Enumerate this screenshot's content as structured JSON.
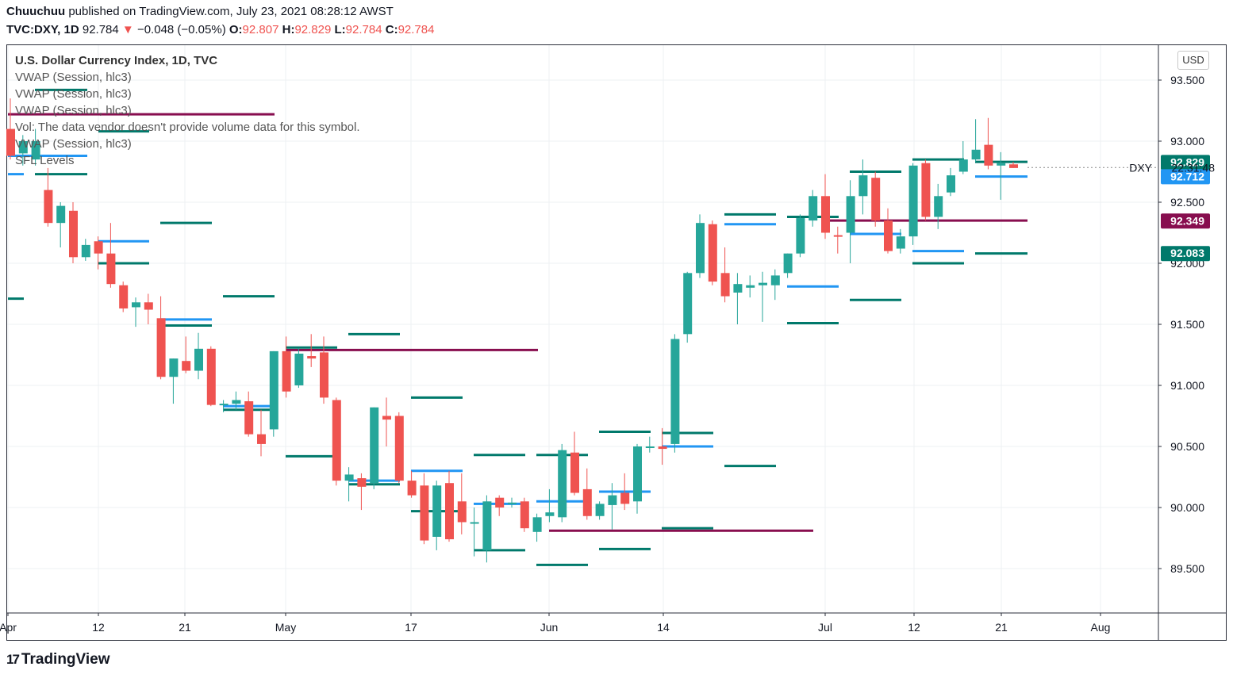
{
  "header": {
    "author": "Chuuchuu",
    "published": "published on TradingView.com, July 23, 2021 08:28:12 AWST",
    "symbol": "TVC:DXY, 1D",
    "last": "92.784",
    "change": "−0.048 (−0.05%)",
    "o_label": "O:",
    "o": "92.807",
    "h_label": "H:",
    "h": "92.829",
    "l_label": "L:",
    "l": "92.784",
    "c_label": "C:",
    "c": "92.784"
  },
  "legend": {
    "title": "U.S. Dollar Currency Index, 1D, TVC",
    "line1": "VWAP (Session, hlc3)",
    "line2": "VWAP (Session, hlc3)",
    "line3": "VWAP (Session, hlc3)",
    "vol": "Vol: The data vendor doesn't provide volume data for this symbol.",
    "line5": "VWAP (Session, hlc3)",
    "line6": "SFL Levels"
  },
  "currency_button": "USD",
  "symbol_tag": "DXY",
  "countdown": "22:31:48",
  "logo_text": "TradingView",
  "colors": {
    "up": "#26a69a",
    "down": "#ef5350",
    "vwap": "#2196f3",
    "sfl": "#00796b",
    "maroon": "#880e4f"
  },
  "chart_data": {
    "type": "candlestick",
    "ylim": [
      89.25,
      93.65
    ],
    "yticks": [
      "93.500",
      "93.000",
      "92.500",
      "92.000",
      "91.500",
      "91.000",
      "90.500",
      "90.000",
      "89.500"
    ],
    "xticks": [
      "Apr",
      "12",
      "21",
      "May",
      "17",
      "Jun",
      "14",
      "Jul",
      "12",
      "21",
      "Aug"
    ],
    "price_badges": [
      {
        "value": "92.829",
        "color": "#00796b"
      },
      {
        "value": "92.712",
        "color": "#2196f3"
      },
      {
        "value": "92.349",
        "color": "#880e4f"
      },
      {
        "value": "92.083",
        "color": "#00796b"
      }
    ],
    "candles": [
      {
        "o": 93.1,
        "h": 93.35,
        "l": 92.85,
        "c": 92.88
      },
      {
        "o": 92.9,
        "h": 93.05,
        "l": 92.8,
        "c": 93.0
      },
      {
        "o": 92.85,
        "h": 93.1,
        "l": 92.8,
        "c": 93.0
      },
      {
        "o": 92.6,
        "h": 92.78,
        "l": 92.3,
        "c": 92.33
      },
      {
        "o": 92.33,
        "h": 92.5,
        "l": 92.13,
        "c": 92.47
      },
      {
        "o": 92.43,
        "h": 92.5,
        "l": 92.0,
        "c": 92.05
      },
      {
        "o": 92.05,
        "h": 92.2,
        "l": 92.02,
        "c": 92.15
      },
      {
        "o": 92.18,
        "h": 92.22,
        "l": 91.95,
        "c": 92.08
      },
      {
        "o": 92.08,
        "h": 92.33,
        "l": 91.8,
        "c": 91.83
      },
      {
        "o": 91.82,
        "h": 91.85,
        "l": 91.6,
        "c": 91.63
      },
      {
        "o": 91.64,
        "h": 91.72,
        "l": 91.48,
        "c": 91.68
      },
      {
        "o": 91.68,
        "h": 91.75,
        "l": 91.5,
        "c": 91.62
      },
      {
        "o": 91.55,
        "h": 91.73,
        "l": 91.05,
        "c": 91.07
      },
      {
        "o": 91.07,
        "h": 91.22,
        "l": 90.85,
        "c": 91.22
      },
      {
        "o": 91.2,
        "h": 91.4,
        "l": 91.1,
        "c": 91.12
      },
      {
        "o": 91.12,
        "h": 91.43,
        "l": 91.05,
        "c": 91.3
      },
      {
        "o": 91.3,
        "h": 91.32,
        "l": 90.83,
        "c": 90.84
      },
      {
        "o": 90.84,
        "h": 90.88,
        "l": 90.78,
        "c": 90.85
      },
      {
        "o": 90.85,
        "h": 90.95,
        "l": 90.8,
        "c": 90.88
      },
      {
        "o": 90.87,
        "h": 90.95,
        "l": 90.58,
        "c": 90.6
      },
      {
        "o": 90.6,
        "h": 90.8,
        "l": 90.42,
        "c": 90.52
      },
      {
        "o": 90.64,
        "h": 91.28,
        "l": 90.58,
        "c": 91.28
      },
      {
        "o": 91.28,
        "h": 91.4,
        "l": 90.9,
        "c": 90.95
      },
      {
        "o": 91.0,
        "h": 91.3,
        "l": 90.98,
        "c": 91.26
      },
      {
        "o": 91.24,
        "h": 91.42,
        "l": 91.15,
        "c": 91.22
      },
      {
        "o": 91.27,
        "h": 91.4,
        "l": 90.85,
        "c": 90.9
      },
      {
        "o": 90.88,
        "h": 90.9,
        "l": 90.18,
        "c": 90.22
      },
      {
        "o": 90.22,
        "h": 90.33,
        "l": 90.05,
        "c": 90.27
      },
      {
        "o": 90.24,
        "h": 90.28,
        "l": 89.98,
        "c": 90.17
      },
      {
        "o": 90.2,
        "h": 90.82,
        "l": 90.15,
        "c": 90.82
      },
      {
        "o": 90.75,
        "h": 90.9,
        "l": 90.5,
        "c": 90.72
      },
      {
        "o": 90.75,
        "h": 90.78,
        "l": 90.2,
        "c": 90.22
      },
      {
        "o": 90.22,
        "h": 90.3,
        "l": 90.08,
        "c": 90.1
      },
      {
        "o": 90.18,
        "h": 90.28,
        "l": 89.7,
        "c": 89.73
      },
      {
        "o": 89.76,
        "h": 90.22,
        "l": 89.65,
        "c": 90.18
      },
      {
        "o": 90.2,
        "h": 90.3,
        "l": 89.72,
        "c": 89.74
      },
      {
        "o": 90.05,
        "h": 90.28,
        "l": 89.78,
        "c": 89.88
      },
      {
        "o": 89.88,
        "h": 90.0,
        "l": 89.6,
        "c": 89.88
      },
      {
        "o": 89.65,
        "h": 90.1,
        "l": 89.55,
        "c": 90.05
      },
      {
        "o": 90.08,
        "h": 90.1,
        "l": 89.93,
        "c": 90.0
      },
      {
        "o": 90.03,
        "h": 90.08,
        "l": 90.0,
        "c": 90.04
      },
      {
        "o": 90.05,
        "h": 90.08,
        "l": 89.8,
        "c": 89.83
      },
      {
        "o": 89.8,
        "h": 89.95,
        "l": 89.72,
        "c": 89.92
      },
      {
        "o": 89.93,
        "h": 90.15,
        "l": 89.88,
        "c": 89.96
      },
      {
        "o": 89.92,
        "h": 90.52,
        "l": 89.88,
        "c": 90.47
      },
      {
        "o": 90.45,
        "h": 90.62,
        "l": 90.1,
        "c": 90.12
      },
      {
        "o": 90.15,
        "h": 90.32,
        "l": 89.9,
        "c": 89.93
      },
      {
        "o": 89.93,
        "h": 90.05,
        "l": 89.9,
        "c": 90.03
      },
      {
        "o": 90.02,
        "h": 90.2,
        "l": 89.82,
        "c": 90.1
      },
      {
        "o": 90.12,
        "h": 90.28,
        "l": 89.98,
        "c": 90.03
      },
      {
        "o": 90.05,
        "h": 90.52,
        "l": 89.95,
        "c": 90.5
      },
      {
        "o": 90.5,
        "h": 90.58,
        "l": 90.45,
        "c": 90.5
      },
      {
        "o": 90.5,
        "h": 90.65,
        "l": 90.35,
        "c": 90.48
      },
      {
        "o": 90.52,
        "h": 91.42,
        "l": 90.45,
        "c": 91.38
      },
      {
        "o": 91.42,
        "h": 91.93,
        "l": 91.35,
        "c": 91.92
      },
      {
        "o": 91.92,
        "h": 92.4,
        "l": 91.88,
        "c": 92.33
      },
      {
        "o": 92.32,
        "h": 92.35,
        "l": 91.82,
        "c": 91.85
      },
      {
        "o": 91.92,
        "h": 92.13,
        "l": 91.68,
        "c": 91.73
      },
      {
        "o": 91.76,
        "h": 91.92,
        "l": 91.5,
        "c": 91.83
      },
      {
        "o": 91.8,
        "h": 91.9,
        "l": 91.72,
        "c": 91.82
      },
      {
        "o": 91.82,
        "h": 91.93,
        "l": 91.52,
        "c": 91.84
      },
      {
        "o": 91.82,
        "h": 91.95,
        "l": 91.7,
        "c": 91.9
      },
      {
        "o": 91.92,
        "h": 92.08,
        "l": 91.88,
        "c": 92.08
      },
      {
        "o": 92.08,
        "h": 92.4,
        "l": 92.05,
        "c": 92.37
      },
      {
        "o": 92.35,
        "h": 92.6,
        "l": 92.3,
        "c": 92.55
      },
      {
        "o": 92.55,
        "h": 92.73,
        "l": 92.2,
        "c": 92.25
      },
      {
        "o": 92.23,
        "h": 92.3,
        "l": 92.08,
        "c": 92.22
      },
      {
        "o": 92.25,
        "h": 92.68,
        "l": 92.0,
        "c": 92.55
      },
      {
        "o": 92.55,
        "h": 92.85,
        "l": 92.4,
        "c": 92.72
      },
      {
        "o": 92.7,
        "h": 92.75,
        "l": 92.3,
        "c": 92.35
      },
      {
        "o": 92.35,
        "h": 92.45,
        "l": 92.08,
        "c": 92.1
      },
      {
        "o": 92.12,
        "h": 92.28,
        "l": 92.08,
        "c": 92.22
      },
      {
        "o": 92.22,
        "h": 92.82,
        "l": 92.15,
        "c": 92.8
      },
      {
        "o": 92.82,
        "h": 92.85,
        "l": 92.35,
        "c": 92.38
      },
      {
        "o": 92.38,
        "h": 92.65,
        "l": 92.28,
        "c": 92.55
      },
      {
        "o": 92.58,
        "h": 92.78,
        "l": 92.55,
        "c": 92.72
      },
      {
        "o": 92.75,
        "h": 93.0,
        "l": 92.73,
        "c": 92.85
      },
      {
        "o": 92.85,
        "h": 93.18,
        "l": 92.83,
        "c": 92.93
      },
      {
        "o": 92.97,
        "h": 93.19,
        "l": 92.77,
        "c": 92.8
      },
      {
        "o": 92.8,
        "h": 92.91,
        "l": 92.52,
        "c": 92.82
      },
      {
        "o": 92.81,
        "h": 92.83,
        "l": 92.78,
        "c": 92.78
      }
    ],
    "levels": [
      {
        "price": 93.22,
        "x0": 10,
        "x1": 346,
        "color": "#880e4f"
      },
      {
        "price": 92.88,
        "x0": 10,
        "x1": 110,
        "color": "#2196f3"
      },
      {
        "price": 92.73,
        "x0": 10,
        "x1": 30,
        "color": "#2196f3"
      },
      {
        "price": 92.73,
        "x0": 44,
        "x1": 110,
        "color": "#00796b"
      },
      {
        "price": 93.42,
        "x0": 44,
        "x1": 110,
        "color": "#00796b"
      },
      {
        "price": 93.08,
        "x0": 124,
        "x1": 188,
        "color": "#00796b"
      },
      {
        "price": 91.71,
        "x0": 10,
        "x1": 30,
        "color": "#00796b"
      },
      {
        "price": 92.18,
        "x0": 124,
        "x1": 188,
        "color": "#2196f3"
      },
      {
        "price": 92.0,
        "x0": 124,
        "x1": 188,
        "color": "#00796b"
      },
      {
        "price": 92.33,
        "x0": 202,
        "x1": 267,
        "color": "#00796b"
      },
      {
        "price": 91.54,
        "x0": 202,
        "x1": 267,
        "color": "#2196f3"
      },
      {
        "price": 91.49,
        "x0": 202,
        "x1": 267,
        "color": "#00796b"
      },
      {
        "price": 91.73,
        "x0": 281,
        "x1": 346,
        "color": "#00796b"
      },
      {
        "price": 90.83,
        "x0": 281,
        "x1": 346,
        "color": "#2196f3"
      },
      {
        "price": 90.8,
        "x0": 281,
        "x1": 346,
        "color": "#00796b"
      },
      {
        "price": 91.29,
        "x0": 360,
        "x1": 678,
        "color": "#880e4f"
      },
      {
        "price": 91.31,
        "x0": 360,
        "x1": 425,
        "color": "#00796b"
      },
      {
        "price": 90.42,
        "x0": 360,
        "x1": 425,
        "color": "#00796b"
      },
      {
        "price": 91.42,
        "x0": 439,
        "x1": 504,
        "color": "#00796b"
      },
      {
        "price": 90.22,
        "x0": 439,
        "x1": 504,
        "color": "#2196f3"
      },
      {
        "price": 90.19,
        "x0": 439,
        "x1": 504,
        "color": "#00796b"
      },
      {
        "price": 90.9,
        "x0": 518,
        "x1": 583,
        "color": "#00796b"
      },
      {
        "price": 90.3,
        "x0": 518,
        "x1": 583,
        "color": "#2196f3"
      },
      {
        "price": 89.97,
        "x0": 518,
        "x1": 583,
        "color": "#00796b"
      },
      {
        "price": 90.43,
        "x0": 597,
        "x1": 662,
        "color": "#00796b"
      },
      {
        "price": 90.03,
        "x0": 597,
        "x1": 662,
        "color": "#2196f3"
      },
      {
        "price": 89.65,
        "x0": 597,
        "x1": 662,
        "color": "#00796b"
      },
      {
        "price": 90.43,
        "x0": 676,
        "x1": 741,
        "color": "#00796b"
      },
      {
        "price": 90.05,
        "x0": 676,
        "x1": 741,
        "color": "#2196f3"
      },
      {
        "price": 89.53,
        "x0": 676,
        "x1": 741,
        "color": "#00796b"
      },
      {
        "price": 89.81,
        "x0": 692,
        "x1": 1025,
        "color": "#880e4f"
      },
      {
        "price": 90.62,
        "x0": 755,
        "x1": 820,
        "color": "#00796b"
      },
      {
        "price": 90.13,
        "x0": 755,
        "x1": 820,
        "color": "#2196f3"
      },
      {
        "price": 89.66,
        "x0": 755,
        "x1": 820,
        "color": "#00796b"
      },
      {
        "price": 90.61,
        "x0": 834,
        "x1": 899,
        "color": "#00796b"
      },
      {
        "price": 90.5,
        "x0": 834,
        "x1": 899,
        "color": "#2196f3"
      },
      {
        "price": 89.83,
        "x0": 834,
        "x1": 899,
        "color": "#00796b"
      },
      {
        "price": 92.4,
        "x0": 913,
        "x1": 978,
        "color": "#00796b"
      },
      {
        "price": 92.32,
        "x0": 913,
        "x1": 978,
        "color": "#2196f3"
      },
      {
        "price": 90.34,
        "x0": 913,
        "x1": 978,
        "color": "#00796b"
      },
      {
        "price": 92.38,
        "x0": 992,
        "x1": 1057,
        "color": "#00796b"
      },
      {
        "price": 91.81,
        "x0": 992,
        "x1": 1057,
        "color": "#2196f3"
      },
      {
        "price": 91.51,
        "x0": 992,
        "x1": 1057,
        "color": "#00796b"
      },
      {
        "price": 92.75,
        "x0": 1071,
        "x1": 1136,
        "color": "#00796b"
      },
      {
        "price": 92.24,
        "x0": 1071,
        "x1": 1136,
        "color": "#2196f3"
      },
      {
        "price": 91.7,
        "x0": 1071,
        "x1": 1136,
        "color": "#00796b"
      },
      {
        "price": 92.35,
        "x0": 1040,
        "x1": 1295,
        "color": "#880e4f"
      },
      {
        "price": 92.85,
        "x0": 1150,
        "x1": 1215,
        "color": "#00796b"
      },
      {
        "price": 92.1,
        "x0": 1150,
        "x1": 1215,
        "color": "#2196f3"
      },
      {
        "price": 92.0,
        "x0": 1150,
        "x1": 1215,
        "color": "#00796b"
      },
      {
        "price": 92.83,
        "x0": 1229,
        "x1": 1295,
        "color": "#00796b"
      },
      {
        "price": 92.71,
        "x0": 1229,
        "x1": 1295,
        "color": "#2196f3"
      },
      {
        "price": 92.08,
        "x0": 1229,
        "x1": 1295,
        "color": "#00796b"
      }
    ]
  }
}
